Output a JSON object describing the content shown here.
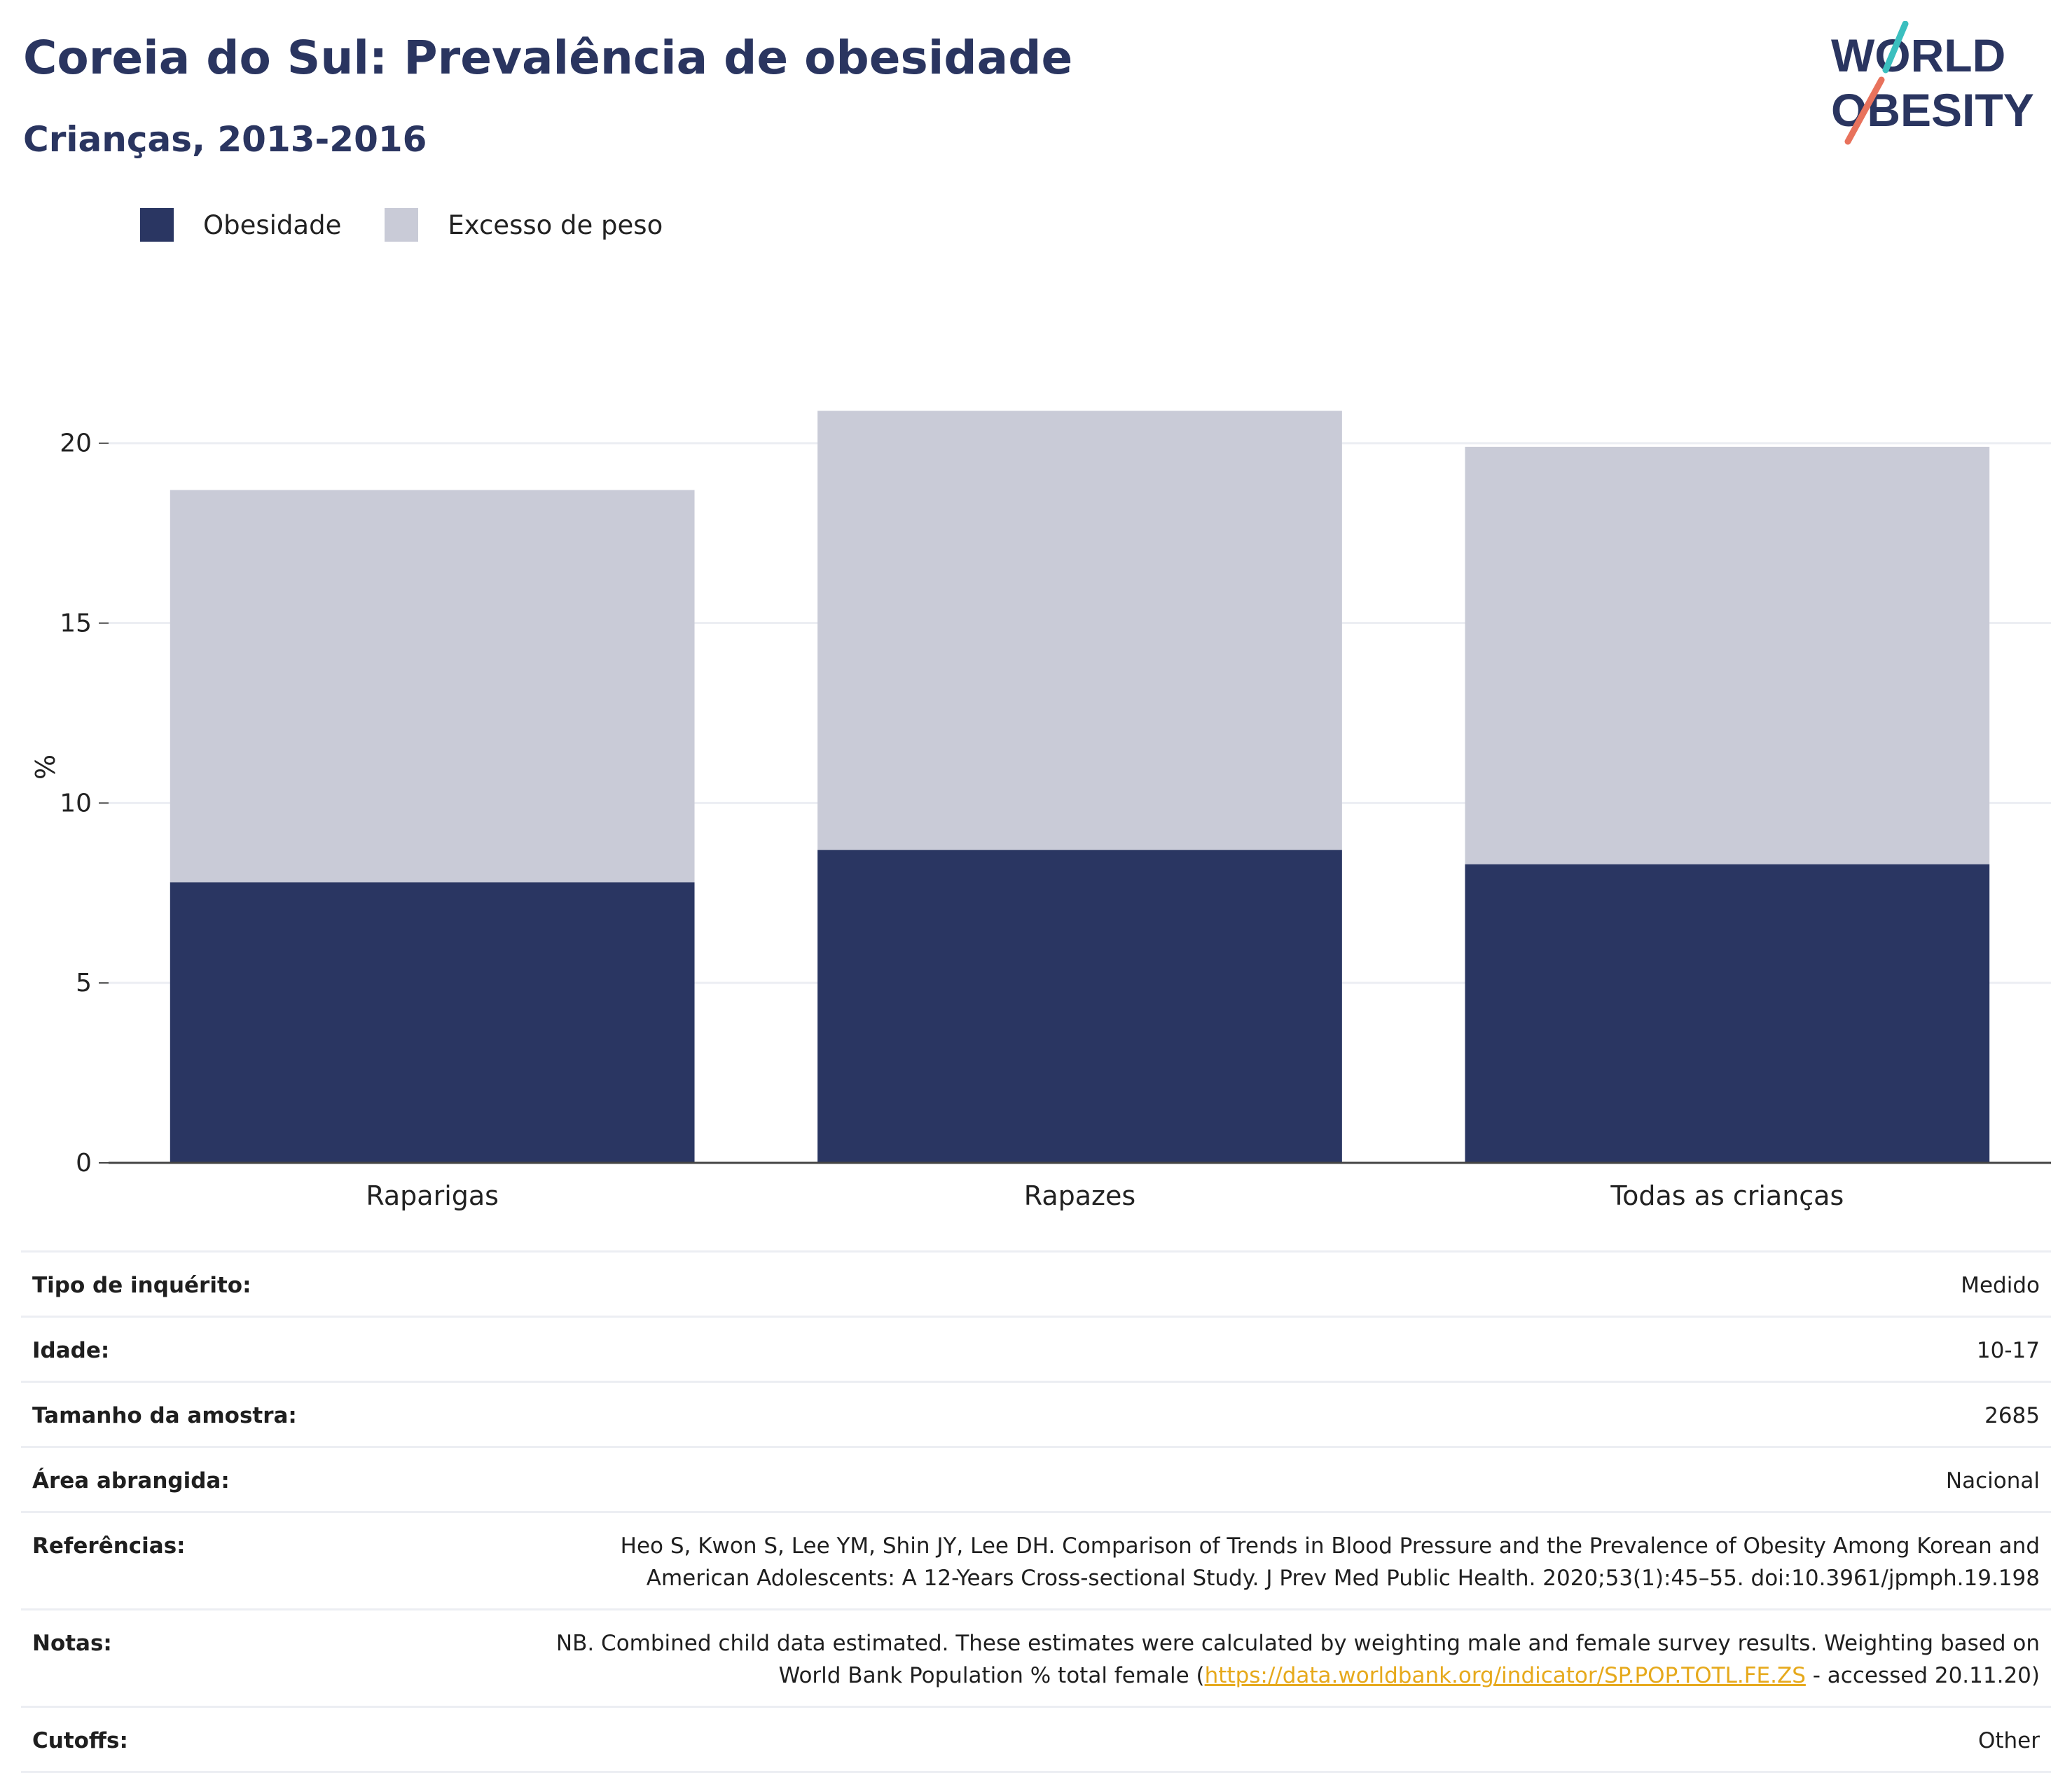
{
  "title": "Coreia do Sul: Prevalência de obesidade",
  "subtitle": "Crianças, 2013-2016",
  "logo": {
    "line1": "WORLD",
    "line2": "OBESITY",
    "accent_teal": "#3bbfbf",
    "accent_coral": "#e8725c"
  },
  "colors": {
    "obesity": "#2a3662",
    "overweight": "#c9cbd7",
    "grid": "#eceef3",
    "axis": "#444444",
    "title": "#2a3560",
    "link": "#e6a91c"
  },
  "legend": {
    "obesity": "Obesidade",
    "overweight": "Excesso de peso"
  },
  "chart_data": {
    "type": "bar",
    "stacked": true,
    "categories": [
      "Raparigas",
      "Rapazes",
      "Todas as crianças"
    ],
    "series": [
      {
        "name": "Obesidade",
        "values": [
          7.8,
          8.7,
          8.3
        ]
      },
      {
        "name": "Excesso de peso",
        "values": [
          10.9,
          12.2,
          11.6
        ]
      }
    ],
    "totals": [
      18.7,
      20.9,
      19.9
    ],
    "ylabel": "%",
    "ylim": [
      0,
      22
    ],
    "yticks": [
      0,
      5,
      10,
      15,
      20
    ],
    "grid": true,
    "legend_position": "top-left"
  },
  "meta": {
    "rows": [
      {
        "label": "Tipo de inquérito:",
        "value": "Medido"
      },
      {
        "label": "Idade:",
        "value": "10-17"
      },
      {
        "label": "Tamanho da amostra:",
        "value": "2685"
      },
      {
        "label": "Área abrangida:",
        "value": "Nacional"
      },
      {
        "label": "Referências:",
        "value_line1": "Heo S, Kwon S, Lee YM, Shin JY, Lee DH. Comparison of Trends in Blood Pressure and the Prevalence of Obesity Among Korean and",
        "value_line2": "American Adolescents: A 12-Years Cross-sectional Study. J Prev Med Public Health. 2020;53(1):45–55. doi:10.3961/jpmph.19.198"
      },
      {
        "label": "Notas:",
        "value_line1": "NB. Combined child data estimated. These estimates were calculated by weighting male and female survey results. Weighting based on",
        "value_line2_pre": "World Bank Population % total female (",
        "link": "https://data.worldbank.org/indicator/SP.POP.TOTL.FE.ZS",
        "value_line2_post": " - accessed 20.11.20)"
      },
      {
        "label": "Cutoffs:",
        "value": "Other"
      }
    ]
  }
}
